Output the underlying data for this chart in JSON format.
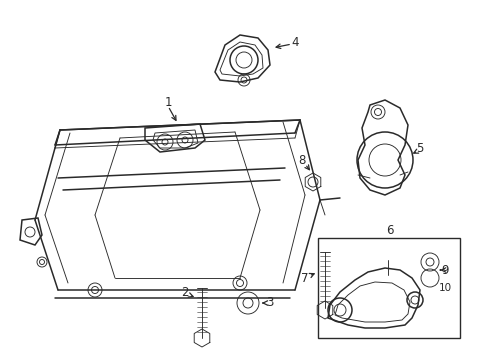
{
  "bg_color": "#ffffff",
  "line_color": "#2a2a2a",
  "figsize": [
    4.89,
    3.6
  ],
  "dpi": 100,
  "lw_main": 1.1,
  "lw_thin": 0.65,
  "lw_detail": 0.5,
  "label_fontsize": 8.5
}
